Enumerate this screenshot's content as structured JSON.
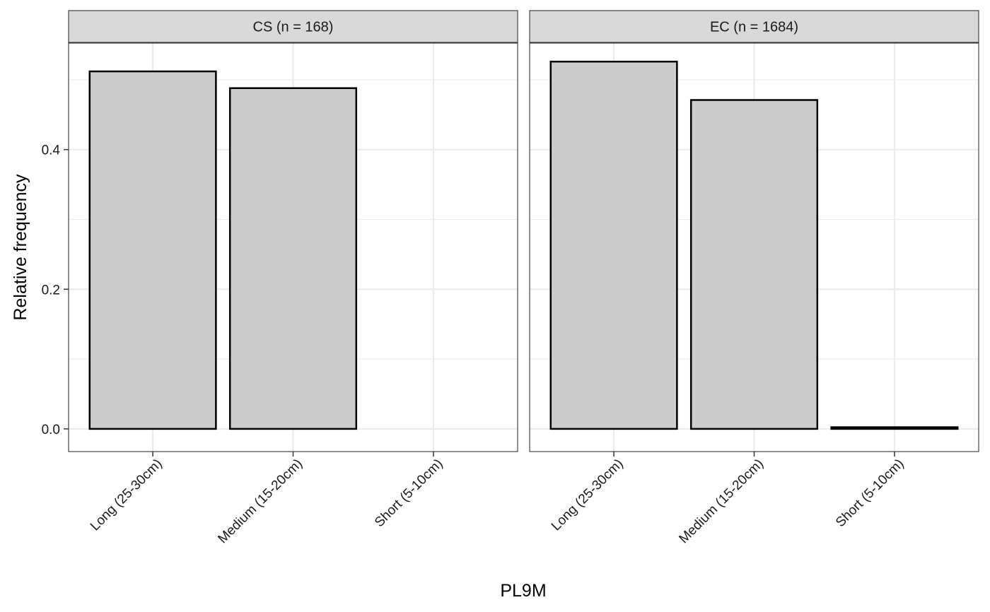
{
  "chart_data": {
    "type": "bar",
    "xlabel": "PL9M",
    "ylabel": "Relative frequency",
    "categories": [
      "Long (25-30cm)",
      "Medium (15-20cm)",
      "Short (5-10cm)"
    ],
    "ylim": [
      -0.0325,
      0.5525
    ],
    "yticks": [
      0.0,
      0.2,
      0.4
    ],
    "ytick_labels": [
      "0.0",
      "0.2",
      "0.4"
    ],
    "grid": true,
    "legend": "none",
    "colors": {
      "bar_fill": "#cccccc",
      "bar_stroke": "#000000",
      "strip_fill": "#d9d9d9",
      "grid": "#ebebeb"
    },
    "facets": [
      {
        "label": "CS (n = 168)",
        "values": [
          0.512,
          0.488,
          0.0
        ]
      },
      {
        "label": "EC (n = 1684)",
        "values": [
          0.526,
          0.471,
          0.0024
        ]
      }
    ]
  }
}
